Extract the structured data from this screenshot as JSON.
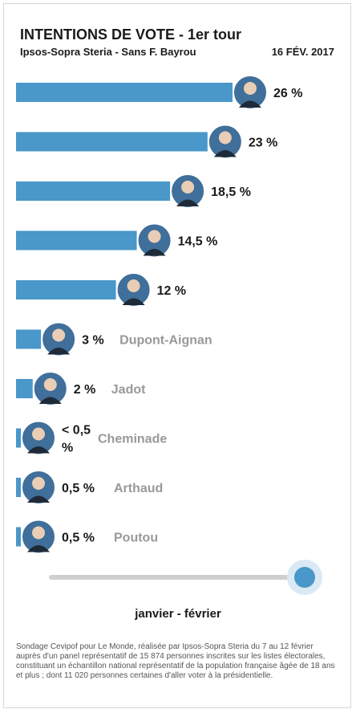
{
  "header": {
    "title": "INTENTIONS DE VOTE - 1er tour",
    "subtitle": "Ipsos-Sopra Steria - Sans F. Bayrou",
    "date": "16 FÉV. 2017"
  },
  "chart_data": {
    "type": "bar",
    "orientation": "horizontal",
    "categories": [
      "",
      "",
      "",
      "",
      "",
      "Dupont-Aignan",
      "Jadot",
      "Cheminade",
      "Arthaud",
      "Poutou"
    ],
    "values": [
      26,
      23,
      18.5,
      14.5,
      12,
      3,
      2,
      0.5,
      0.5,
      0.5
    ],
    "value_labels": [
      "26 %",
      "23 %",
      "18,5 %",
      "14,5 %",
      "12 %",
      "3 %",
      "2 %",
      "< 0,5 %",
      "0,5 %",
      "0,5 %"
    ],
    "xlim": [
      0,
      26
    ],
    "grid": false,
    "legend": "none"
  },
  "slider": {
    "label": "janvier - février",
    "position": 1.0
  },
  "footnote": "Sondage Cevipof pour Le Monde, réalisée par Ipsos-Sopra Steria du 7 au 12 février auprès d'un panel représentatif de 15 874 personnes inscrites sur les listes électorales, constituant un échantillon national représentatif de la population française âgée de 18 ans et plus ; dont 11 020 personnes certaines d'aller voter à la présidentielle.",
  "colors": {
    "bar": "#4a97c9",
    "portrait_bg": "#3f6f9a",
    "value_text": "#1a1a1a",
    "name_text": "#999999"
  },
  "icons": {
    "portrait": "person-portrait-icon"
  }
}
